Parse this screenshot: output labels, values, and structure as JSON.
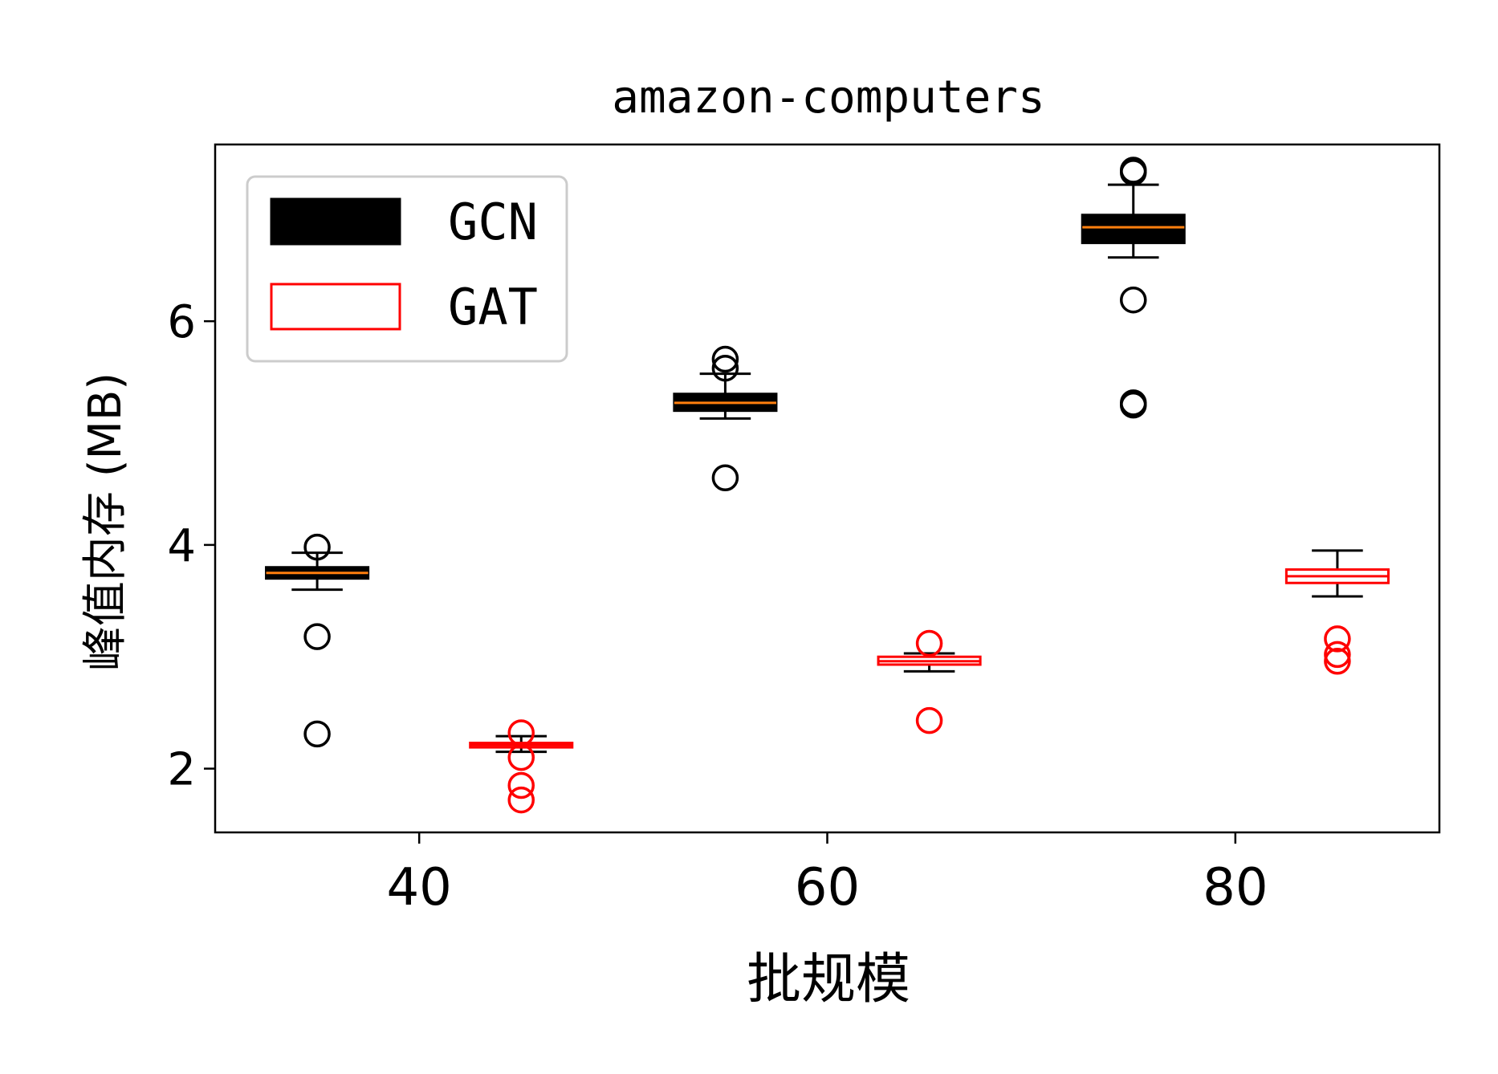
{
  "chart_data": {
    "type": "box",
    "title": "amazon-computers",
    "xlabel": "批规模",
    "ylabel": "峰值内存 (MB)",
    "xlim": [
      30,
      90
    ],
    "ylim": [
      1.43,
      7.58
    ],
    "xticks": [
      40,
      60,
      80
    ],
    "yticks": [
      2,
      4,
      6
    ],
    "grid": false,
    "legend_position": "top-left",
    "series": [
      {
        "name": "GCN",
        "style": "filled",
        "color": "#000000",
        "boxes": [
          {
            "x": 35,
            "whisker_low": 3.6,
            "q1": 3.7,
            "median": 3.75,
            "q3": 3.8,
            "whisker_high": 3.93,
            "fliers": [
              3.98,
              3.18,
              2.31
            ]
          },
          {
            "x": 55,
            "whisker_low": 5.13,
            "q1": 5.2,
            "median": 5.27,
            "q3": 5.35,
            "whisker_high": 5.53,
            "fliers": [
              5.66,
              5.58,
              4.6
            ]
          },
          {
            "x": 75,
            "whisker_low": 6.57,
            "q1": 6.7,
            "median": 6.84,
            "q3": 6.95,
            "whisker_high": 7.22,
            "fliers": [
              7.35,
              7.33,
              6.19,
              5.27,
              5.25
            ]
          }
        ]
      },
      {
        "name": "GAT",
        "style": "outline",
        "color": "#ff0000",
        "boxes": [
          {
            "x": 45,
            "whisker_low": 2.15,
            "q1": 2.19,
            "median": 2.21,
            "q3": 2.23,
            "whisker_high": 2.29,
            "fliers": [
              2.32,
              2.1,
              1.85,
              1.72
            ]
          },
          {
            "x": 65,
            "whisker_low": 2.87,
            "q1": 2.93,
            "median": 2.96,
            "q3": 3.0,
            "whisker_high": 3.03,
            "fliers": [
              3.12,
              2.43
            ]
          },
          {
            "x": 85,
            "whisker_low": 3.54,
            "q1": 3.66,
            "median": 3.72,
            "q3": 3.78,
            "whisker_high": 3.95,
            "fliers": [
              3.16,
              3.02,
              2.96
            ]
          }
        ]
      }
    ],
    "median_color": "#ff7f0e"
  }
}
